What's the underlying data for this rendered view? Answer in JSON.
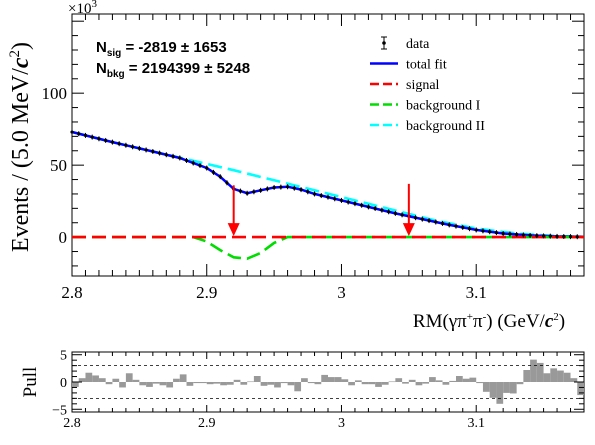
{
  "chart_data": [
    {
      "type": "line",
      "panel": "main",
      "multiplier_label": "×10",
      "multiplier_exponent": "3",
      "ylabel": "Events / (5.0 MeV/c²)",
      "ylabel_parts": [
        "Events / (5.0 MeV/",
        "c",
        "2",
        ")"
      ],
      "xlabel_parts": [
        "RM(γπ",
        "+",
        "π",
        "-",
        ") (GeV/",
        "c",
        "2",
        ")"
      ],
      "xlim": [
        2.8,
        3.18
      ],
      "ylim": [
        -27,
        155
      ],
      "x_ticks": [
        {
          "v": 2.8,
          "label": "2.8"
        },
        {
          "v": 2.9,
          "label": "2.9"
        },
        {
          "v": 3.0,
          "label": "3"
        },
        {
          "v": 3.1,
          "label": "3.1"
        }
      ],
      "y_ticks": [
        {
          "v": 0,
          "label": "0"
        },
        {
          "v": 50,
          "label": "50"
        },
        {
          "v": 100,
          "label": "100"
        }
      ],
      "annotations": [
        {
          "main": "N",
          "sub": "sig",
          "rest": " = -2819 ± 1653"
        },
        {
          "main": "N",
          "sub": "bkg",
          "rest": " = 2194399 ± 5248"
        }
      ],
      "legend": {
        "placement": "top-right",
        "entries": [
          {
            "label": "data",
            "kind": "data",
            "color": "#000000"
          },
          {
            "label": "total fit",
            "kind": "solid",
            "color": "#0000ff"
          },
          {
            "label": "signal",
            "kind": "dash",
            "color": "#ff0000"
          },
          {
            "label": "background I",
            "kind": "dash",
            "color": "#00dd00"
          },
          {
            "label": "background II",
            "kind": "dash",
            "color": "#00ffff"
          }
        ]
      },
      "arrows": [
        {
          "x": 2.92,
          "y_top": 36,
          "y_bottom": 0,
          "color": "#ff0000"
        },
        {
          "x": 3.05,
          "y_top": 37,
          "y_bottom": 0,
          "color": "#ff0000"
        }
      ],
      "series": [
        {
          "name": "background II",
          "color": "#00ffff",
          "style": "dash",
          "x": [
            2.8,
            2.83,
            2.86,
            2.89,
            2.92,
            2.95,
            2.98,
            3.01,
            3.04,
            3.07,
            3.1,
            3.13,
            3.16,
            3.18
          ],
          "values": [
            73,
            66,
            59.5,
            53,
            46.5,
            39.5,
            32.5,
            25.5,
            18.5,
            11.5,
            6,
            2.5,
            0.7,
            0.2
          ]
        },
        {
          "name": "total fit",
          "color": "#0000ff",
          "style": "solid",
          "x": [
            2.8,
            2.83,
            2.86,
            2.88,
            2.9,
            2.91,
            2.92,
            2.93,
            2.94,
            2.95,
            2.96,
            2.97,
            2.98,
            3.0,
            3.02,
            3.04,
            3.06,
            3.08,
            3.1,
            3.12,
            3.14,
            3.16,
            3.18
          ],
          "values": [
            73,
            66,
            59.5,
            55,
            48,
            42,
            33.5,
            30.5,
            32.5,
            34.5,
            35,
            33,
            30,
            25.5,
            21,
            16.5,
            12.5,
            8.5,
            5,
            2.5,
            1.2,
            0.5,
            0.2
          ]
        },
        {
          "name": "background I",
          "color": "#00dd00",
          "style": "dash",
          "x": [
            2.8,
            2.86,
            2.89,
            2.9,
            2.91,
            2.92,
            2.93,
            2.94,
            2.95,
            2.96,
            3.0,
            3.1,
            3.18
          ],
          "values": [
            0,
            0,
            0,
            -3,
            -9,
            -14,
            -15,
            -11,
            -4,
            0,
            0,
            0,
            0
          ]
        },
        {
          "name": "signal",
          "color": "#ff0000",
          "style": "dash",
          "x": [
            2.8,
            3.18
          ],
          "values": [
            0,
            0
          ]
        },
        {
          "name": "data",
          "color": "#000000",
          "style": "points",
          "x_start": 2.8,
          "x_step": 0.005,
          "points": 76
        }
      ]
    },
    {
      "type": "bar",
      "panel": "pull",
      "ylabel": "Pull",
      "xlim": [
        2.8,
        3.18
      ],
      "ylim": [
        -5.5,
        5.5
      ],
      "reference_lines": [
        3,
        -3
      ],
      "x_ticks": [
        {
          "v": 2.8,
          "label": "2.8"
        },
        {
          "v": 2.9,
          "label": "2.9"
        },
        {
          "v": 3.0,
          "label": "3"
        },
        {
          "v": 3.1,
          "label": "3.1"
        }
      ],
      "y_ticks": [
        {
          "v": 5,
          "label": "5"
        },
        {
          "v": 0,
          "label": "0"
        },
        {
          "v": -5,
          "label": "−5"
        }
      ],
      "bar_color": "#999999",
      "x_start": 2.8,
      "x_step": 0.005,
      "values": [
        -0.9,
        0.7,
        1.7,
        1.2,
        0.7,
        -0.4,
        0.6,
        -1.0,
        1.6,
        0.4,
        -0.6,
        -0.9,
        -0.3,
        -0.6,
        -1.0,
        0.6,
        1.4,
        -0.7,
        -0.2,
        -0.2,
        -0.4,
        -0.3,
        -0.6,
        -0.5,
        0.4,
        -0.5,
        0.1,
        1.1,
        -0.7,
        -0.5,
        -1.0,
        -0.2,
        -0.6,
        -1.7,
        0.7,
        -0.2,
        -0.4,
        1.3,
        0.9,
        0.9,
        0.5,
        -0.6,
        0.3,
        -0.4,
        -0.4,
        -0.9,
        -0.5,
        0.1,
        0.7,
        -0.3,
        0.4,
        -0.6,
        -0.3,
        0.9,
        0.3,
        -0.5,
        0.2,
        1.1,
        0.6,
        0.8,
        -0.2,
        -1.8,
        -2.9,
        -4.0,
        -2.0,
        -2.1,
        -0.4,
        2.2,
        4.1,
        3.5,
        1.6,
        2.5,
        2.1,
        1.7,
        0.7,
        -2.4
      ]
    }
  ]
}
